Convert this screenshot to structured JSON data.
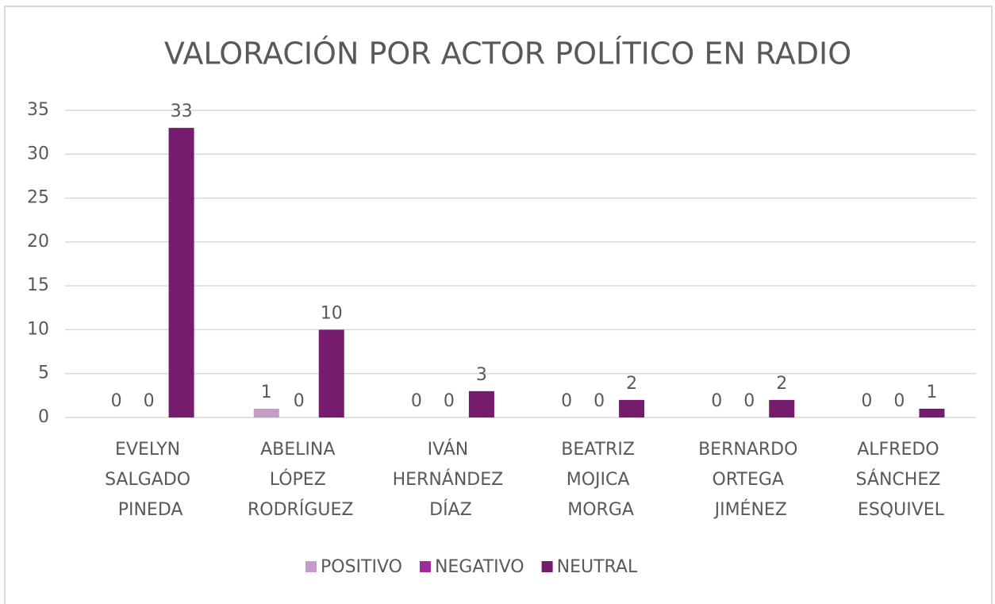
{
  "chart_data": {
    "type": "bar",
    "title": "VALORACIÓN POR ACTOR POLÍTICO EN RADIO",
    "categories": [
      "EVELYN SALGADO PINEDA",
      "ABELINA LÓPEZ RODRÍGUEZ",
      "IVÁN HERNÁNDEZ DÍAZ",
      "BEATRIZ MOJICA MORGA",
      "BERNARDO ORTEGA JIMÉNEZ",
      "ALFREDO SÁNCHEZ ESQUIVEL"
    ],
    "series": [
      {
        "name": "POSITIVO",
        "color": "#c49cc7",
        "values": [
          0,
          1,
          0,
          0,
          0,
          0
        ]
      },
      {
        "name": "NEGATIVO",
        "color": "#9e2d99",
        "values": [
          0,
          0,
          0,
          0,
          0,
          0
        ]
      },
      {
        "name": "NEUTRAL",
        "color": "#761c6f",
        "values": [
          33,
          10,
          3,
          2,
          2,
          1
        ]
      }
    ],
    "ylim": [
      0,
      35
    ],
    "yticks": [
      0,
      5,
      10,
      15,
      20,
      25,
      30,
      35
    ],
    "grid": true,
    "legend": "bottom"
  }
}
